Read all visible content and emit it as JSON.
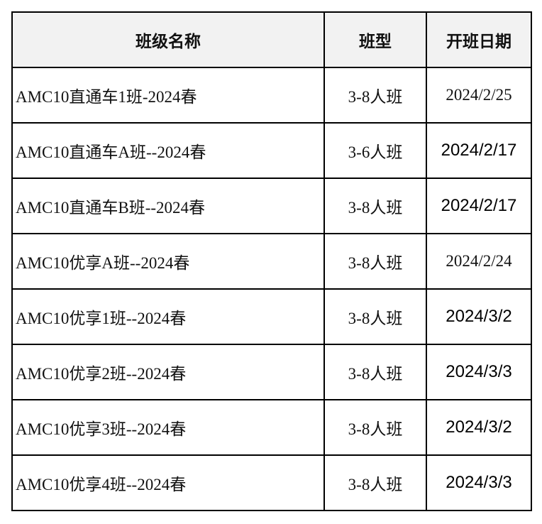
{
  "table": {
    "headers": [
      "班级名称",
      "班型",
      "开班日期"
    ],
    "rows": [
      {
        "name": "AMC10直通车1班-2024春",
        "type": "3-8人班",
        "date": "2024/2/25",
        "date_style": "serif"
      },
      {
        "name": "AMC10直通车A班--2024春",
        "type": "3-6人班",
        "date": "2024/2/17",
        "date_style": "sans"
      },
      {
        "name": "AMC10直通车B班--2024春",
        "type": "3-8人班",
        "date": "2024/2/17",
        "date_style": "sans"
      },
      {
        "name": "AMC10优享A班--2024春",
        "type": "3-8人班",
        "date": "2024/2/24",
        "date_style": "serif"
      },
      {
        "name": "AMC10优享1班--2024春",
        "type": "3-8人班",
        "date": "2024/3/2",
        "date_style": "sans"
      },
      {
        "name": "AMC10优享2班--2024春",
        "type": "3-8人班",
        "date": "2024/3/3",
        "date_style": "sans"
      },
      {
        "name": "AMC10优享3班--2024春",
        "type": "3-8人班",
        "date": "2024/3/2",
        "date_style": "sans"
      },
      {
        "name": "AMC10优享4班--2024春",
        "type": "3-8人班",
        "date": "2024/3/3",
        "date_style": "sans"
      }
    ]
  },
  "colors": {
    "header_bg": "#f2f2f2",
    "border": "#000000"
  }
}
